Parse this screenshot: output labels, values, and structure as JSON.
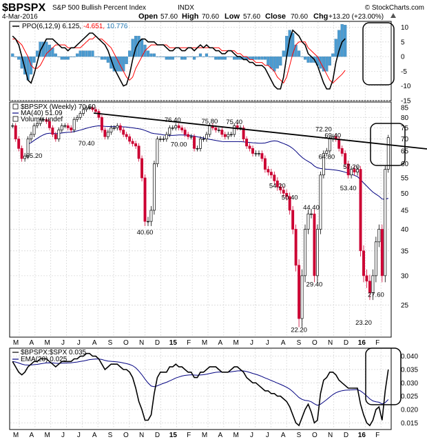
{
  "header": {
    "symbol": "$BPSPX",
    "name": "S&P 500 Bullish Percent Index",
    "exchange": "INDX",
    "brand": "© StockCharts.com",
    "date": "4-Mar-2016",
    "open_label": "Open",
    "open": "57.60",
    "high_label": "High",
    "high": "70.60",
    "low_label": "Low",
    "low": "57.60",
    "close_label": "Close",
    "close": "70.60",
    "chg_label": "Chg",
    "chg": "+13.20 (+23.00%)",
    "chg_icon": "up-triangle-icon"
  },
  "x_axis": {
    "labels": [
      "M",
      "A",
      "M",
      "J",
      "J",
      "A",
      "S",
      "O",
      "N",
      "D",
      "15",
      "F",
      "M",
      "A",
      "M",
      "J",
      "J",
      "A",
      "S",
      "O",
      "N",
      "D",
      "16",
      "F"
    ],
    "bold_labels": [
      "15",
      "16"
    ]
  },
  "colors": {
    "up_candle": "#ffffff",
    "down_candle": "#cc0033",
    "ppo_line": "#000000",
    "ppo_signal": "#ff0000",
    "histogram": "#4a9bd1",
    "ma_line": "#000080",
    "ratio_line": "#000000",
    "ema_line": "#000080",
    "trendline": "#000000"
  },
  "chart_data": [
    {
      "panel": "ppo",
      "type": "line",
      "legend": [
        {
          "text": "PPO(6,12,9) 6.125,",
          "color": "#000000"
        },
        {
          "text": " -4.651,",
          "color": "#ff0000"
        },
        {
          "text": " 10.776",
          "color": "#1f77b4"
        }
      ],
      "yticks": [
        10,
        5,
        0,
        -5,
        -10,
        -15
      ],
      "ylim": [
        -15,
        12
      ],
      "ppo": [
        7,
        6,
        4,
        0,
        -4,
        -8,
        -9,
        -6,
        -2,
        2,
        4,
        6,
        6,
        6,
        5,
        4,
        3,
        3,
        2,
        3,
        3,
        4,
        5,
        6,
        7,
        8,
        8,
        7,
        6,
        5,
        4,
        2,
        -1,
        -4,
        -6,
        -8,
        -10,
        -9.5,
        -6,
        -1,
        3,
        5,
        6,
        6,
        5,
        5,
        5,
        4,
        4,
        4,
        3,
        2,
        2,
        3,
        3,
        2,
        2,
        3,
        3,
        2,
        3,
        4,
        3,
        4,
        3,
        3,
        2,
        2,
        1,
        1,
        2,
        2,
        1,
        0,
        0,
        -1,
        -1,
        -2,
        -2,
        -3,
        -3,
        -3,
        -4,
        -6,
        -8,
        -10,
        -11,
        -11,
        -7,
        0,
        6,
        9,
        8,
        7,
        5,
        4,
        1,
        0,
        -1,
        -3,
        -6,
        -9,
        -11,
        -11,
        -8,
        -2,
        2,
        5,
        6.1
      ],
      "signal": [
        6,
        6,
        5,
        4,
        2,
        0,
        -3,
        -4,
        -4,
        -3,
        -1,
        1,
        2,
        3,
        4,
        4,
        4,
        4,
        3,
        3,
        3,
        3,
        3,
        4,
        5,
        6,
        6,
        7,
        6,
        6,
        5,
        4,
        3,
        1,
        -1,
        -3,
        -5,
        -7,
        -8,
        -7,
        -4,
        -2,
        0,
        2,
        3,
        4,
        4,
        4,
        4,
        4,
        4,
        3,
        3,
        3,
        3,
        3,
        3,
        3,
        3,
        3,
        3,
        3,
        3,
        3,
        3,
        3,
        3,
        3,
        2,
        2,
        2,
        2,
        2,
        1,
        1,
        0,
        0,
        -1,
        -1,
        -2,
        -2,
        -2,
        -3,
        -3,
        -4,
        -5,
        -7,
        -8,
        -9,
        -7,
        -3,
        1,
        4,
        5,
        5,
        5,
        3,
        2,
        1,
        0,
        -2,
        -4,
        -6,
        -8,
        -9,
        -8,
        -7,
        -6,
        -4.65
      ],
      "annotations": []
    },
    {
      "panel": "price",
      "type": "candlestick",
      "legend": [
        {
          "text": "$BPSPX (Weekly) 70.60",
          "color": "#000000",
          "icon": "square-marker-icon"
        },
        {
          "text": "MA(40) 51.09",
          "color": "#000080",
          "icon": "line-marker-icon"
        },
        {
          "text": "Volume undef",
          "color": "#000000",
          "icon": "square-marker-icon"
        }
      ],
      "yticks": [
        85,
        80,
        75,
        70,
        65,
        60,
        55,
        50,
        45,
        40,
        35,
        30,
        25
      ],
      "ylim": [
        20.5,
        88
      ],
      "close": [
        76,
        70,
        66,
        62,
        63,
        70,
        72,
        76,
        77,
        79,
        79,
        78,
        75,
        72,
        70,
        74,
        76,
        76,
        75,
        74,
        79,
        80,
        82,
        84,
        85,
        85,
        84,
        83,
        80,
        74,
        71,
        73,
        75,
        75,
        76,
        74,
        72,
        71,
        69,
        68,
        67,
        62,
        55,
        42,
        42,
        45,
        60,
        70,
        70,
        70,
        72,
        75,
        75,
        76,
        75,
        74,
        72,
        71,
        71,
        66,
        66,
        70,
        70,
        72,
        76,
        75,
        74,
        74,
        72,
        71,
        72,
        72,
        76,
        75,
        75,
        70,
        67,
        66,
        64,
        64,
        64,
        62,
        58,
        57,
        56,
        54,
        52,
        51,
        50,
        49,
        45,
        40,
        32,
        23,
        30,
        40,
        44,
        44,
        30,
        40,
        56,
        64,
        65,
        70,
        71,
        70,
        66,
        64,
        60,
        56,
        58,
        57,
        58,
        35,
        30,
        29,
        27,
        30,
        37,
        40,
        30,
        58,
        70.6
      ],
      "annotations": [
        {
          "label": "65.20",
          "bar": 7,
          "value": 65.2,
          "pos": "below"
        },
        {
          "label": "70.40",
          "bar": 24,
          "value": 70.4,
          "pos": "below"
        },
        {
          "label": "40.60",
          "bar": 43,
          "value": 40.6,
          "pos": "below"
        },
        {
          "label": "76.40",
          "bar": 52,
          "value": 76.4,
          "pos": "above"
        },
        {
          "label": "70.00",
          "bar": 54,
          "value": 70.0,
          "pos": "below"
        },
        {
          "label": "75.80",
          "bar": 64,
          "value": 75.8,
          "pos": "above"
        },
        {
          "label": "75.40",
          "bar": 72,
          "value": 75.4,
          "pos": "above"
        },
        {
          "label": "54.20",
          "bar": 86,
          "value": 54.2,
          "pos": "below"
        },
        {
          "label": "50.40",
          "bar": 90,
          "value": 50.4,
          "pos": "below"
        },
        {
          "label": "44.40",
          "bar": 97,
          "value": 44.4,
          "pos": "above"
        },
        {
          "label": "22.20",
          "bar": 93,
          "value": 22.2,
          "pos": "below"
        },
        {
          "label": "29.40",
          "bar": 98,
          "value": 29.4,
          "pos": "below"
        },
        {
          "label": "72.20",
          "bar": 101,
          "value": 72.2,
          "pos": "above"
        },
        {
          "label": "69.40",
          "bar": 104,
          "value": 69.4,
          "pos": "above"
        },
        {
          "label": "64.80",
          "bar": 102,
          "value": 64.8,
          "pos": "below"
        },
        {
          "label": "57.20",
          "bar": 110,
          "value": 57.2,
          "pos": "above"
        },
        {
          "label": "53.40",
          "bar": 109,
          "value": 53.4,
          "pos": "below"
        },
        {
          "label": "27.60",
          "bar": 118,
          "value": 27.6,
          "pos": "below"
        },
        {
          "label": "23.20",
          "bar": 114,
          "value": 23.2,
          "pos": "below"
        }
      ]
    },
    {
      "panel": "ratio",
      "type": "line",
      "legend": [
        {
          "text": "$BPSPX:$SPX 0.035",
          "color": "#000000",
          "icon": "line-marker-icon"
        },
        {
          "text": "EMA(20) 0.025",
          "color": "#000080",
          "icon": "line-marker-icon"
        }
      ],
      "yticks": [
        0.04,
        0.035,
        0.03,
        0.025,
        0.02,
        0.015
      ],
      "ylim": [
        0.0125,
        0.043
      ],
      "ratio": [
        0.038,
        0.036,
        0.034,
        0.033,
        0.034,
        0.036,
        0.037,
        0.038,
        0.038,
        0.039,
        0.039,
        0.039,
        0.038,
        0.037,
        0.036,
        0.037,
        0.038,
        0.038,
        0.038,
        0.038,
        0.039,
        0.039,
        0.04,
        0.04,
        0.041,
        0.041,
        0.04,
        0.04,
        0.039,
        0.037,
        0.035,
        0.036,
        0.037,
        0.037,
        0.037,
        0.036,
        0.035,
        0.035,
        0.034,
        0.032,
        0.028,
        0.023,
        0.02,
        0.016,
        0.016,
        0.018,
        0.026,
        0.032,
        0.034,
        0.034,
        0.034,
        0.036,
        0.036,
        0.037,
        0.036,
        0.036,
        0.035,
        0.034,
        0.034,
        0.032,
        0.032,
        0.034,
        0.034,
        0.035,
        0.036,
        0.036,
        0.036,
        0.035,
        0.034,
        0.034,
        0.034,
        0.035,
        0.036,
        0.036,
        0.035,
        0.034,
        0.032,
        0.031,
        0.03,
        0.03,
        0.029,
        0.028,
        0.027,
        0.027,
        0.026,
        0.026,
        0.025,
        0.025,
        0.024,
        0.023,
        0.021,
        0.018,
        0.015,
        0.014,
        0.017,
        0.02,
        0.022,
        0.019,
        0.015,
        0.016,
        0.026,
        0.031,
        0.032,
        0.034,
        0.034,
        0.033,
        0.031,
        0.03,
        0.029,
        0.028,
        0.028,
        0.028,
        0.028,
        0.022,
        0.018,
        0.015,
        0.014,
        0.016,
        0.02,
        0.021,
        0.016,
        0.027,
        0.035
      ],
      "annotations": []
    }
  ]
}
